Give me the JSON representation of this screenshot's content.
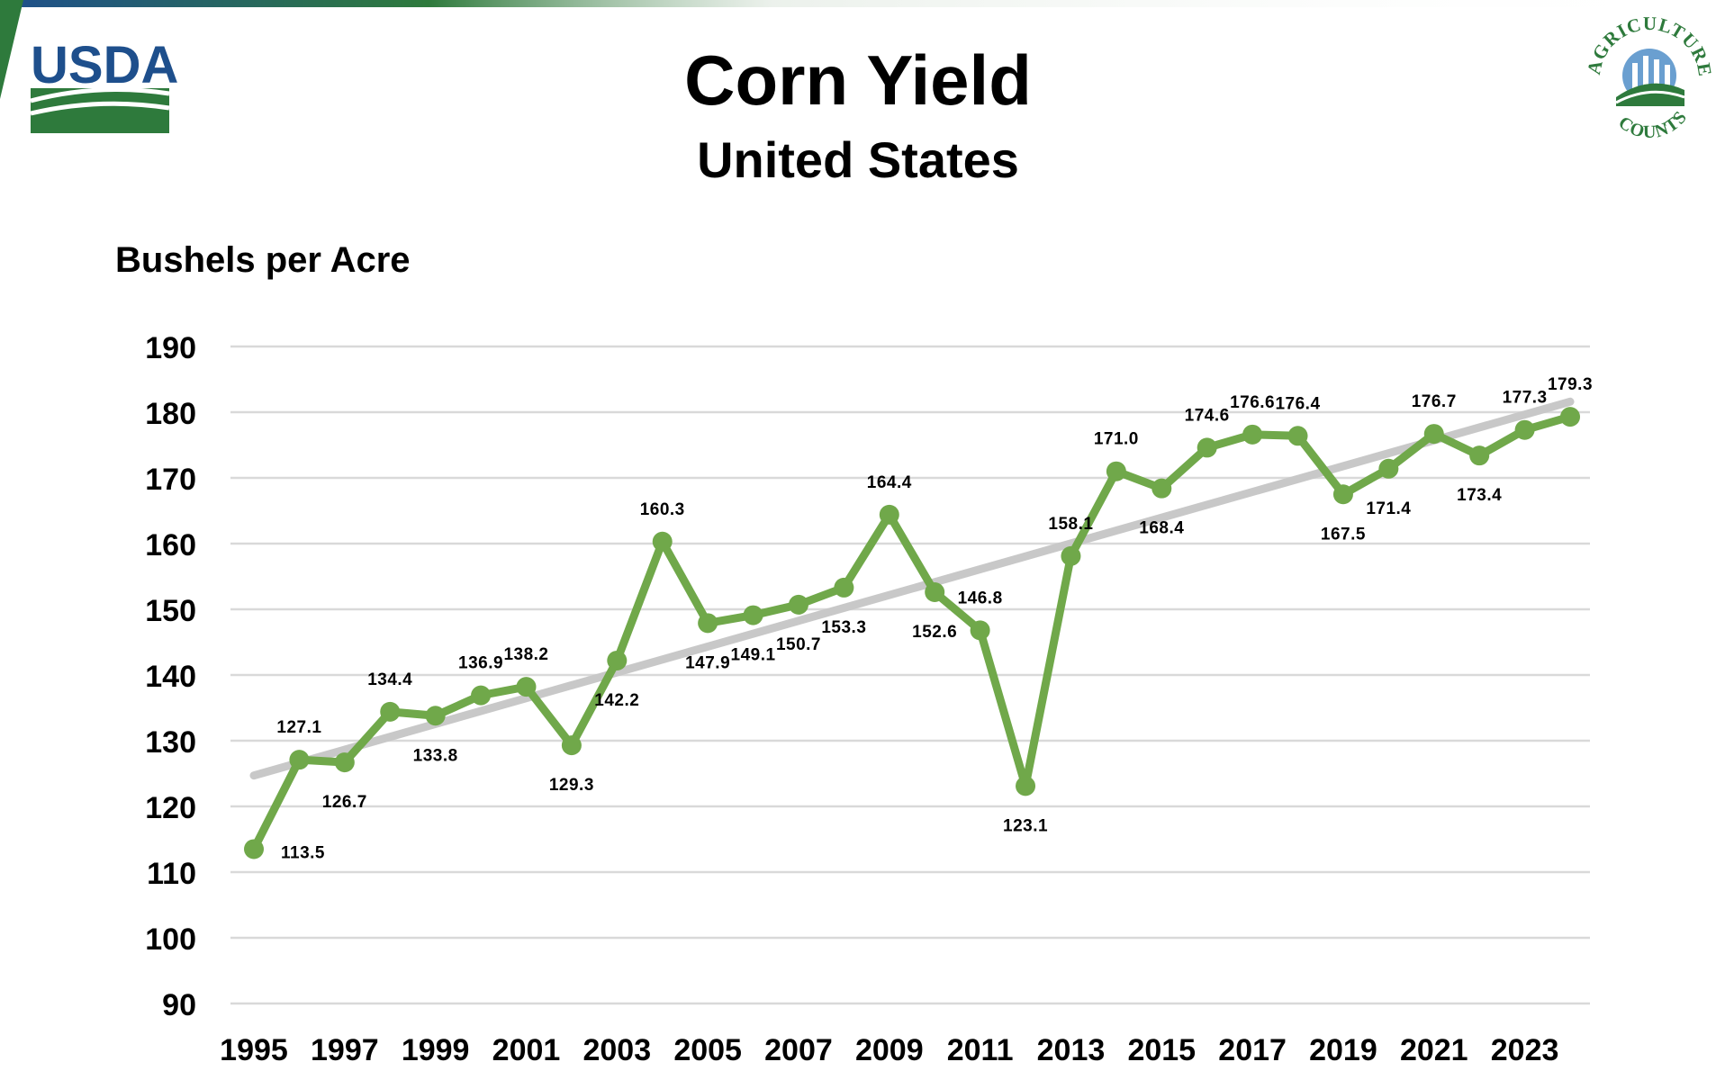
{
  "header": {
    "logo_text": "USDA",
    "badge_top_text": "AGRICULTURE",
    "badge_bottom_text": "COUNTS"
  },
  "colors": {
    "series": "#70a84a",
    "trend": "#c8c8c8",
    "grid": "#d9d9d9",
    "usda_blue": "#1e4f8c",
    "usda_green": "#2e7a3c"
  },
  "chart_data": {
    "type": "line",
    "title": "Corn Yield",
    "subtitle": "United States",
    "ylabel": "Bushels per Acre",
    "xlabel": "",
    "ylim": [
      90,
      190
    ],
    "yticks": [
      90,
      100,
      110,
      120,
      130,
      140,
      150,
      160,
      170,
      180,
      190
    ],
    "xticks": [
      1995,
      1997,
      1999,
      2001,
      2003,
      2005,
      2007,
      2009,
      2011,
      2013,
      2015,
      2017,
      2019,
      2021,
      2023
    ],
    "grid": true,
    "x": [
      1995,
      1996,
      1997,
      1998,
      1999,
      2000,
      2001,
      2002,
      2003,
      2004,
      2005,
      2006,
      2007,
      2008,
      2009,
      2010,
      2011,
      2012,
      2013,
      2014,
      2015,
      2016,
      2017,
      2018,
      2019,
      2020,
      2021,
      2022,
      2023,
      2024
    ],
    "series": [
      {
        "values": [
          113.5,
          127.1,
          126.7,
          134.4,
          133.8,
          136.9,
          138.2,
          129.3,
          142.2,
          160.3,
          147.9,
          149.1,
          150.7,
          153.3,
          164.4,
          152.6,
          146.8,
          123.1,
          158.1,
          171.0,
          168.4,
          174.6,
          176.6,
          176.4,
          167.5,
          171.4,
          176.7,
          173.4,
          177.3,
          179.3
        ],
        "labels": [
          "113.5",
          "127.1",
          "126.7",
          "134.4",
          "133.8",
          "136.9",
          "138.2",
          "129.3",
          "142.2",
          "160.3",
          "147.9",
          "149.1",
          "150.7",
          "153.3",
          "164.4",
          "152.6",
          "146.8",
          "123.1",
          "158.1",
          "171.0",
          "168.4",
          "174.6",
          "176.6",
          "176.4",
          "167.5",
          "171.4",
          "176.7",
          "173.4",
          "177.3",
          "179.3"
        ]
      }
    ],
    "trendline": {
      "start": [
        1995,
        124.7
      ],
      "end": [
        2024,
        181.6
      ]
    }
  }
}
